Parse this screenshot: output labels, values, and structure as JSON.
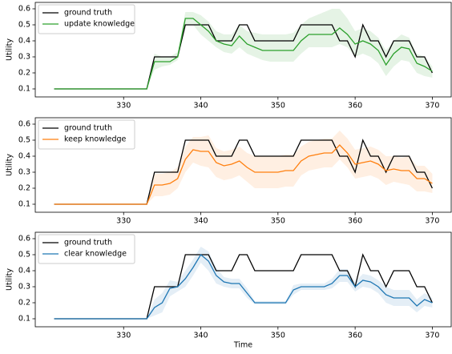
{
  "chart_data": [
    {
      "type": "line",
      "ylabel": "Utility",
      "legend": "upper left",
      "x": [
        321,
        322,
        323,
        324,
        325,
        326,
        327,
        328,
        329,
        330,
        331,
        332,
        333,
        334,
        335,
        336,
        337,
        338,
        339,
        340,
        341,
        342,
        343,
        344,
        345,
        346,
        347,
        348,
        349,
        350,
        351,
        352,
        353,
        354,
        355,
        356,
        357,
        358,
        359,
        360,
        361,
        362,
        363,
        364,
        365,
        366,
        367,
        368,
        369,
        370
      ],
      "xlim": [
        318.55,
        372.45
      ],
      "xticks": [
        330,
        340,
        350,
        360,
        370
      ],
      "ylim": [
        0.05,
        0.64
      ],
      "yticks": [
        0.1,
        0.2,
        0.3,
        0.4,
        0.5,
        0.6
      ],
      "series": [
        {
          "name": "ground truth",
          "color": "#000000",
          "values": [
            0.1,
            0.1,
            0.1,
            0.1,
            0.1,
            0.1,
            0.1,
            0.1,
            0.1,
            0.1,
            0.1,
            0.1,
            0.1,
            0.3,
            0.3,
            0.3,
            0.3,
            0.5,
            0.5,
            0.5,
            0.5,
            0.4,
            0.4,
            0.4,
            0.5,
            0.5,
            0.4,
            0.4,
            0.4,
            0.4,
            0.4,
            0.4,
            0.5,
            0.5,
            0.5,
            0.5,
            0.5,
            0.4,
            0.4,
            0.3,
            0.5,
            0.4,
            0.4,
            0.3,
            0.4,
            0.4,
            0.4,
            0.3,
            0.3,
            0.2
          ]
        },
        {
          "name": "update knowledge",
          "color": "#2ca02c",
          "values": [
            0.1,
            0.1,
            0.1,
            0.1,
            0.1,
            0.1,
            0.1,
            0.1,
            0.1,
            0.1,
            0.1,
            0.1,
            0.1,
            0.27,
            0.27,
            0.27,
            0.3,
            0.54,
            0.54,
            0.5,
            0.46,
            0.4,
            0.38,
            0.37,
            0.43,
            0.38,
            0.36,
            0.34,
            0.34,
            0.34,
            0.34,
            0.34,
            0.4,
            0.44,
            0.44,
            0.44,
            0.44,
            0.48,
            0.44,
            0.38,
            0.4,
            0.38,
            0.34,
            0.25,
            0.32,
            0.36,
            0.35,
            0.26,
            0.24,
            0.21
          ],
          "lower": [
            0.1,
            0.1,
            0.1,
            0.1,
            0.1,
            0.1,
            0.1,
            0.1,
            0.1,
            0.1,
            0.1,
            0.1,
            0.1,
            0.22,
            0.24,
            0.25,
            0.28,
            0.5,
            0.5,
            0.44,
            0.4,
            0.36,
            0.33,
            0.32,
            0.36,
            0.32,
            0.3,
            0.28,
            0.27,
            0.27,
            0.27,
            0.27,
            0.32,
            0.36,
            0.36,
            0.36,
            0.36,
            0.38,
            0.36,
            0.3,
            0.32,
            0.3,
            0.26,
            0.18,
            0.24,
            0.28,
            0.27,
            0.2,
            0.18,
            0.17
          ],
          "upper": [
            0.1,
            0.1,
            0.1,
            0.1,
            0.1,
            0.1,
            0.1,
            0.1,
            0.1,
            0.1,
            0.1,
            0.1,
            0.1,
            0.32,
            0.3,
            0.3,
            0.33,
            0.58,
            0.58,
            0.56,
            0.52,
            0.46,
            0.44,
            0.44,
            0.5,
            0.46,
            0.45,
            0.44,
            0.44,
            0.44,
            0.44,
            0.45,
            0.5,
            0.54,
            0.56,
            0.58,
            0.6,
            0.6,
            0.54,
            0.46,
            0.48,
            0.46,
            0.42,
            0.34,
            0.4,
            0.44,
            0.42,
            0.32,
            0.3,
            0.24
          ]
        }
      ]
    },
    {
      "type": "line",
      "ylabel": "Utility",
      "legend": "upper left",
      "x": [
        321,
        322,
        323,
        324,
        325,
        326,
        327,
        328,
        329,
        330,
        331,
        332,
        333,
        334,
        335,
        336,
        337,
        338,
        339,
        340,
        341,
        342,
        343,
        344,
        345,
        346,
        347,
        348,
        349,
        350,
        351,
        352,
        353,
        354,
        355,
        356,
        357,
        358,
        359,
        360,
        361,
        362,
        363,
        364,
        365,
        366,
        367,
        368,
        369,
        370
      ],
      "xlim": [
        318.55,
        372.45
      ],
      "xticks": [
        330,
        340,
        350,
        360,
        370
      ],
      "ylim": [
        0.05,
        0.64
      ],
      "yticks": [
        0.1,
        0.2,
        0.3,
        0.4,
        0.5,
        0.6
      ],
      "series": [
        {
          "name": "ground truth",
          "color": "#000000",
          "values": [
            0.1,
            0.1,
            0.1,
            0.1,
            0.1,
            0.1,
            0.1,
            0.1,
            0.1,
            0.1,
            0.1,
            0.1,
            0.1,
            0.3,
            0.3,
            0.3,
            0.3,
            0.5,
            0.5,
            0.5,
            0.5,
            0.4,
            0.4,
            0.4,
            0.5,
            0.5,
            0.4,
            0.4,
            0.4,
            0.4,
            0.4,
            0.4,
            0.5,
            0.5,
            0.5,
            0.5,
            0.5,
            0.4,
            0.4,
            0.3,
            0.5,
            0.4,
            0.4,
            0.3,
            0.4,
            0.4,
            0.4,
            0.3,
            0.3,
            0.2
          ]
        },
        {
          "name": "keep knowledge",
          "color": "#ff7f0e",
          "values": [
            0.1,
            0.1,
            0.1,
            0.1,
            0.1,
            0.1,
            0.1,
            0.1,
            0.1,
            0.1,
            0.1,
            0.1,
            0.1,
            0.22,
            0.22,
            0.23,
            0.26,
            0.38,
            0.44,
            0.43,
            0.43,
            0.36,
            0.34,
            0.35,
            0.37,
            0.33,
            0.3,
            0.3,
            0.3,
            0.3,
            0.31,
            0.31,
            0.37,
            0.4,
            0.41,
            0.42,
            0.42,
            0.47,
            0.42,
            0.35,
            0.36,
            0.37,
            0.35,
            0.31,
            0.32,
            0.31,
            0.31,
            0.26,
            0.26,
            0.23
          ],
          "lower": [
            0.1,
            0.1,
            0.1,
            0.1,
            0.1,
            0.1,
            0.1,
            0.1,
            0.1,
            0.1,
            0.1,
            0.1,
            0.1,
            0.15,
            0.15,
            0.16,
            0.2,
            0.3,
            0.36,
            0.34,
            0.33,
            0.27,
            0.25,
            0.26,
            0.28,
            0.24,
            0.2,
            0.2,
            0.2,
            0.2,
            0.21,
            0.21,
            0.28,
            0.31,
            0.32,
            0.33,
            0.33,
            0.38,
            0.33,
            0.26,
            0.27,
            0.28,
            0.26,
            0.22,
            0.24,
            0.23,
            0.22,
            0.18,
            0.18,
            0.17
          ],
          "upper": [
            0.1,
            0.1,
            0.1,
            0.1,
            0.1,
            0.1,
            0.1,
            0.1,
            0.1,
            0.1,
            0.1,
            0.1,
            0.1,
            0.29,
            0.29,
            0.3,
            0.33,
            0.46,
            0.52,
            0.52,
            0.53,
            0.45,
            0.43,
            0.44,
            0.46,
            0.42,
            0.4,
            0.4,
            0.4,
            0.4,
            0.41,
            0.41,
            0.46,
            0.49,
            0.5,
            0.51,
            0.51,
            0.56,
            0.51,
            0.44,
            0.45,
            0.46,
            0.44,
            0.4,
            0.4,
            0.39,
            0.4,
            0.34,
            0.34,
            0.29
          ]
        }
      ]
    },
    {
      "type": "line",
      "ylabel": "Utility",
      "xlabel": "Time",
      "legend": "upper left",
      "x": [
        321,
        322,
        323,
        324,
        325,
        326,
        327,
        328,
        329,
        330,
        331,
        332,
        333,
        334,
        335,
        336,
        337,
        338,
        339,
        340,
        341,
        342,
        343,
        344,
        345,
        346,
        347,
        348,
        349,
        350,
        351,
        352,
        353,
        354,
        355,
        356,
        357,
        358,
        359,
        360,
        361,
        362,
        363,
        364,
        365,
        366,
        367,
        368,
        369,
        370
      ],
      "xlim": [
        318.55,
        372.45
      ],
      "xticks": [
        330,
        340,
        350,
        360,
        370
      ],
      "ylim": [
        0.05,
        0.64
      ],
      "yticks": [
        0.1,
        0.2,
        0.3,
        0.4,
        0.5,
        0.6
      ],
      "series": [
        {
          "name": "ground truth",
          "color": "#000000",
          "values": [
            0.1,
            0.1,
            0.1,
            0.1,
            0.1,
            0.1,
            0.1,
            0.1,
            0.1,
            0.1,
            0.1,
            0.1,
            0.1,
            0.3,
            0.3,
            0.3,
            0.3,
            0.5,
            0.5,
            0.5,
            0.5,
            0.4,
            0.4,
            0.4,
            0.5,
            0.5,
            0.4,
            0.4,
            0.4,
            0.4,
            0.4,
            0.4,
            0.5,
            0.5,
            0.5,
            0.5,
            0.5,
            0.4,
            0.4,
            0.3,
            0.5,
            0.4,
            0.4,
            0.3,
            0.4,
            0.4,
            0.4,
            0.3,
            0.3,
            0.2
          ]
        },
        {
          "name": "clear knowledge",
          "color": "#1f77b4",
          "values": [
            0.1,
            0.1,
            0.1,
            0.1,
            0.1,
            0.1,
            0.1,
            0.1,
            0.1,
            0.1,
            0.1,
            0.1,
            0.1,
            0.17,
            0.2,
            0.29,
            0.3,
            0.35,
            0.42,
            0.5,
            0.46,
            0.37,
            0.33,
            0.32,
            0.32,
            0.26,
            0.2,
            0.2,
            0.2,
            0.2,
            0.2,
            0.28,
            0.3,
            0.3,
            0.3,
            0.3,
            0.32,
            0.37,
            0.37,
            0.3,
            0.34,
            0.33,
            0.3,
            0.25,
            0.23,
            0.23,
            0.23,
            0.18,
            0.22,
            0.2
          ],
          "lower": [
            0.1,
            0.1,
            0.1,
            0.1,
            0.1,
            0.1,
            0.1,
            0.1,
            0.1,
            0.1,
            0.1,
            0.1,
            0.1,
            0.12,
            0.14,
            0.24,
            0.27,
            0.3,
            0.37,
            0.45,
            0.4,
            0.32,
            0.3,
            0.29,
            0.29,
            0.23,
            0.19,
            0.19,
            0.19,
            0.19,
            0.19,
            0.25,
            0.28,
            0.28,
            0.28,
            0.28,
            0.29,
            0.33,
            0.33,
            0.27,
            0.3,
            0.29,
            0.26,
            0.2,
            0.18,
            0.18,
            0.18,
            0.14,
            0.18,
            0.17
          ],
          "upper": [
            0.1,
            0.1,
            0.1,
            0.1,
            0.1,
            0.1,
            0.1,
            0.1,
            0.1,
            0.1,
            0.1,
            0.1,
            0.1,
            0.22,
            0.26,
            0.34,
            0.33,
            0.4,
            0.47,
            0.55,
            0.52,
            0.42,
            0.36,
            0.35,
            0.35,
            0.29,
            0.21,
            0.21,
            0.21,
            0.21,
            0.21,
            0.31,
            0.32,
            0.32,
            0.32,
            0.32,
            0.35,
            0.41,
            0.41,
            0.33,
            0.38,
            0.37,
            0.34,
            0.3,
            0.28,
            0.28,
            0.28,
            0.22,
            0.26,
            0.23
          ]
        }
      ]
    }
  ]
}
